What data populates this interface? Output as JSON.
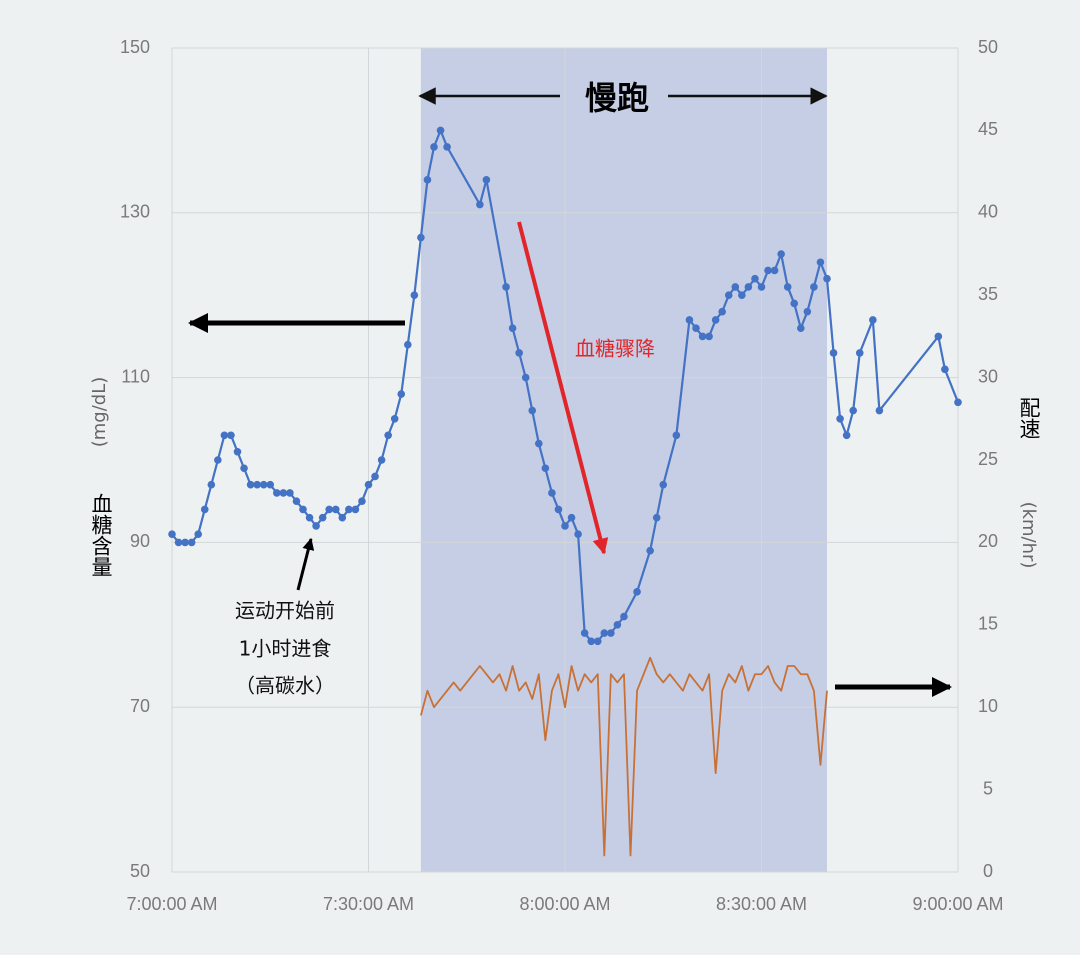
{
  "chart_data": {
    "type": "line",
    "title": "慢跑",
    "y_label": "血糖含量",
    "y_unit": "(mg/dL)",
    "y2_label": "配速",
    "y2_unit": "(km/hr)",
    "annotations": [
      "血糖骤降",
      "运动开始前",
      "1小时进食",
      "（高碳水）"
    ],
    "highlight_range": [
      "7:38:00 AM",
      "8:40:00 AM"
    ],
    "xlim": [
      "7:00:00 AM",
      "9:00:00 AM"
    ],
    "xticks": [
      "7:00:00 AM",
      "7:30:00 AM",
      "8:00:00 AM",
      "8:30:00 AM",
      "9:00:00 AM"
    ],
    "ylim": [
      50,
      150
    ],
    "yticks": [
      50,
      70,
      90,
      110,
      130,
      150
    ],
    "y2lim": [
      0,
      50
    ],
    "y2ticks": [
      0,
      5,
      10,
      15,
      20,
      25,
      30,
      35,
      40,
      45,
      50
    ],
    "grid": true,
    "series": [
      {
        "name": "血糖",
        "color": "#4472c4",
        "markers": true,
        "x": [
          "7:00:00 AM",
          "7:01:00 AM",
          "7:02:00 AM",
          "7:03:00 AM",
          "7:04:00 AM",
          "7:05:00 AM",
          "7:06:00 AM",
          "7:07:00 AM",
          "7:08:00 AM",
          "7:09:00 AM",
          "7:10:00 AM",
          "7:11:00 AM",
          "7:12:00 AM",
          "7:13:00 AM",
          "7:14:00 AM",
          "7:15:00 AM",
          "7:16:00 AM",
          "7:17:00 AM",
          "7:18:00 AM",
          "7:19:00 AM",
          "7:20:00 AM",
          "7:21:00 AM",
          "7:22:00 AM",
          "7:23:00 AM",
          "7:24:00 AM",
          "7:25:00 AM",
          "7:26:00 AM",
          "7:27:00 AM",
          "7:28:00 AM",
          "7:29:00 AM",
          "7:30:00 AM",
          "7:31:00 AM",
          "7:32:00 AM",
          "7:33:00 AM",
          "7:34:00 AM",
          "7:35:00 AM",
          "7:36:00 AM",
          "7:37:00 AM",
          "7:38:00 AM",
          "7:39:00 AM",
          "7:40:00 AM",
          "7:41:00 AM",
          "7:42:00 AM",
          "7:47:00 AM",
          "7:48:00 AM",
          "7:51:00 AM",
          "7:52:00 AM",
          "7:53:00 AM",
          "7:54:00 AM",
          "7:55:00 AM",
          "7:56:00 AM",
          "7:57:00 AM",
          "7:58:00 AM",
          "7:59:00 AM",
          "8:00:00 AM",
          "8:01:00 AM",
          "8:02:00 AM",
          "8:03:00 AM",
          "8:04:00 AM",
          "8:05:00 AM",
          "8:06:00 AM",
          "8:07:00 AM",
          "8:08:00 AM",
          "8:09:00 AM",
          "8:11:00 AM",
          "8:13:00 AM",
          "8:14:00 AM",
          "8:15:00 AM",
          "8:17:00 AM",
          "8:19:00 AM",
          "8:20:00 AM",
          "8:21:00 AM",
          "8:22:00 AM",
          "8:23:00 AM",
          "8:24:00 AM",
          "8:25:00 AM",
          "8:26:00 AM",
          "8:27:00 AM",
          "8:28:00 AM",
          "8:29:00 AM",
          "8:30:00 AM",
          "8:31:00 AM",
          "8:32:00 AM",
          "8:33:00 AM",
          "8:34:00 AM",
          "8:35:00 AM",
          "8:36:00 AM",
          "8:37:00 AM",
          "8:38:00 AM",
          "8:39:00 AM",
          "8:40:00 AM",
          "8:41:00 AM",
          "8:42:00 AM",
          "8:43:00 AM",
          "8:44:00 AM",
          "8:45:00 AM",
          "8:47:00 AM",
          "8:48:00 AM",
          "8:57:00 AM",
          "8:58:00 AM",
          "9:00:00 AM"
        ],
        "values": [
          91,
          90,
          90,
          90,
          91,
          94,
          97,
          100,
          103,
          103,
          101,
          99,
          97,
          97,
          97,
          97,
          96,
          96,
          96,
          95,
          94,
          93,
          92,
          93,
          94,
          94,
          93,
          94,
          94,
          95,
          97,
          98,
          100,
          103,
          105,
          108,
          114,
          120,
          127,
          134,
          138,
          140,
          138,
          131,
          134,
          121,
          116,
          113,
          110,
          106,
          102,
          99,
          96,
          94,
          92,
          93,
          91,
          79,
          78,
          78,
          79,
          79,
          80,
          81,
          84,
          89,
          93,
          97,
          103,
          117,
          116,
          115,
          115,
          117,
          118,
          120,
          121,
          120,
          121,
          122,
          121,
          123,
          123,
          125,
          121,
          119,
          116,
          118,
          121,
          124,
          122,
          113,
          105,
          103,
          106,
          113,
          117,
          106,
          115,
          111,
          107
        ]
      },
      {
        "name": "配速",
        "color": "#c87137",
        "axis": "y2",
        "markers": false,
        "x": [
          "7:38:00 AM",
          "7:39:00 AM",
          "7:40:00 AM",
          "7:41:00 AM",
          "7:42:00 AM",
          "7:43:00 AM",
          "7:44:00 AM",
          "7:45:00 AM",
          "7:46:00 AM",
          "7:47:00 AM",
          "7:48:00 AM",
          "7:49:00 AM",
          "7:50:00 AM",
          "7:51:00 AM",
          "7:52:00 AM",
          "7:53:00 AM",
          "7:54:00 AM",
          "7:55:00 AM",
          "7:56:00 AM",
          "7:57:00 AM",
          "7:58:00 AM",
          "7:59:00 AM",
          "8:00:00 AM",
          "8:01:00 AM",
          "8:02:00 AM",
          "8:03:00 AM",
          "8:04:00 AM",
          "8:05:00 AM",
          "8:06:00 AM",
          "8:07:00 AM",
          "8:08:00 AM",
          "8:09:00 AM",
          "8:10:00 AM",
          "8:11:00 AM",
          "8:12:00 AM",
          "8:13:00 AM",
          "8:14:00 AM",
          "8:15:00 AM",
          "8:16:00 AM",
          "8:17:00 AM",
          "8:18:00 AM",
          "8:19:00 AM",
          "8:20:00 AM",
          "8:21:00 AM",
          "8:22:00 AM",
          "8:23:00 AM",
          "8:24:00 AM",
          "8:25:00 AM",
          "8:26:00 AM",
          "8:27:00 AM",
          "8:28:00 AM",
          "8:29:00 AM",
          "8:30:00 AM",
          "8:31:00 AM",
          "8:32:00 AM",
          "8:33:00 AM",
          "8:34:00 AM",
          "8:35:00 AM",
          "8:36:00 AM",
          "8:37:00 AM",
          "8:38:00 AM",
          "8:39:00 AM",
          "8:40:00 AM"
        ],
        "values": [
          9.5,
          11,
          10,
          10.5,
          11,
          11.5,
          11,
          11.5,
          12,
          12.5,
          12,
          11.5,
          12,
          11,
          12.5,
          11,
          11.5,
          10.5,
          12,
          8,
          11,
          12,
          10,
          12.5,
          11,
          12,
          11.5,
          12,
          1,
          12,
          11.5,
          12,
          1,
          11,
          12,
          13,
          12,
          11.5,
          12,
          11.5,
          11,
          12,
          11.5,
          11,
          12,
          6,
          11,
          12,
          11.5,
          12.5,
          11,
          12,
          12,
          12.5,
          11.5,
          11,
          12.5,
          12.5,
          12,
          12,
          11,
          6.5,
          11
        ]
      }
    ]
  }
}
